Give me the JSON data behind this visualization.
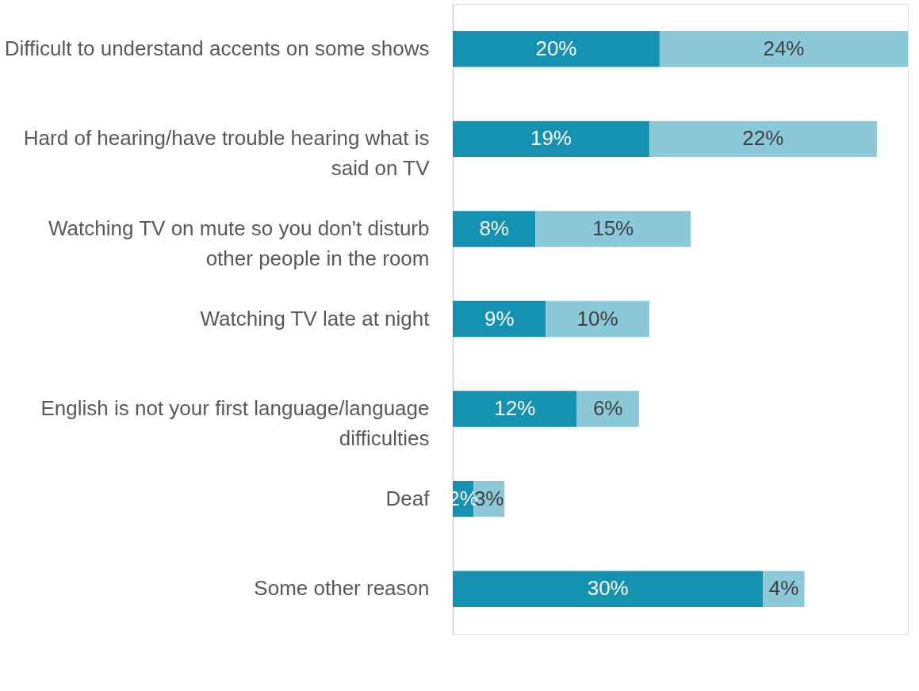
{
  "chart_data": {
    "type": "bar",
    "orientation": "horizontal",
    "stacked": true,
    "tick_labels": "y",
    "grid": false,
    "categories": [
      "Difficult to understand accents on some shows",
      "Hard of hearing/have trouble hearing what is said on TV",
      "Watching TV on mute so you don't disturb other people in the room",
      "Watching TV late at night",
      "English is not your first language/language difficulties",
      "Deaf",
      "Some other reason"
    ],
    "series": [
      {
        "color": "#1592b2",
        "values": [
          20,
          19,
          8,
          9,
          12,
          2,
          30
        ],
        "value_labels": [
          "20%",
          "19%",
          "8%",
          "9%",
          "12%",
          "2%",
          "30%"
        ]
      },
      {
        "color": "#8bc9d8",
        "values": [
          24,
          22,
          15,
          10,
          6,
          3,
          4
        ],
        "value_labels": [
          "24%",
          "22%",
          "15%",
          "10%",
          "6%",
          "3%",
          "4%"
        ]
      }
    ]
  }
}
